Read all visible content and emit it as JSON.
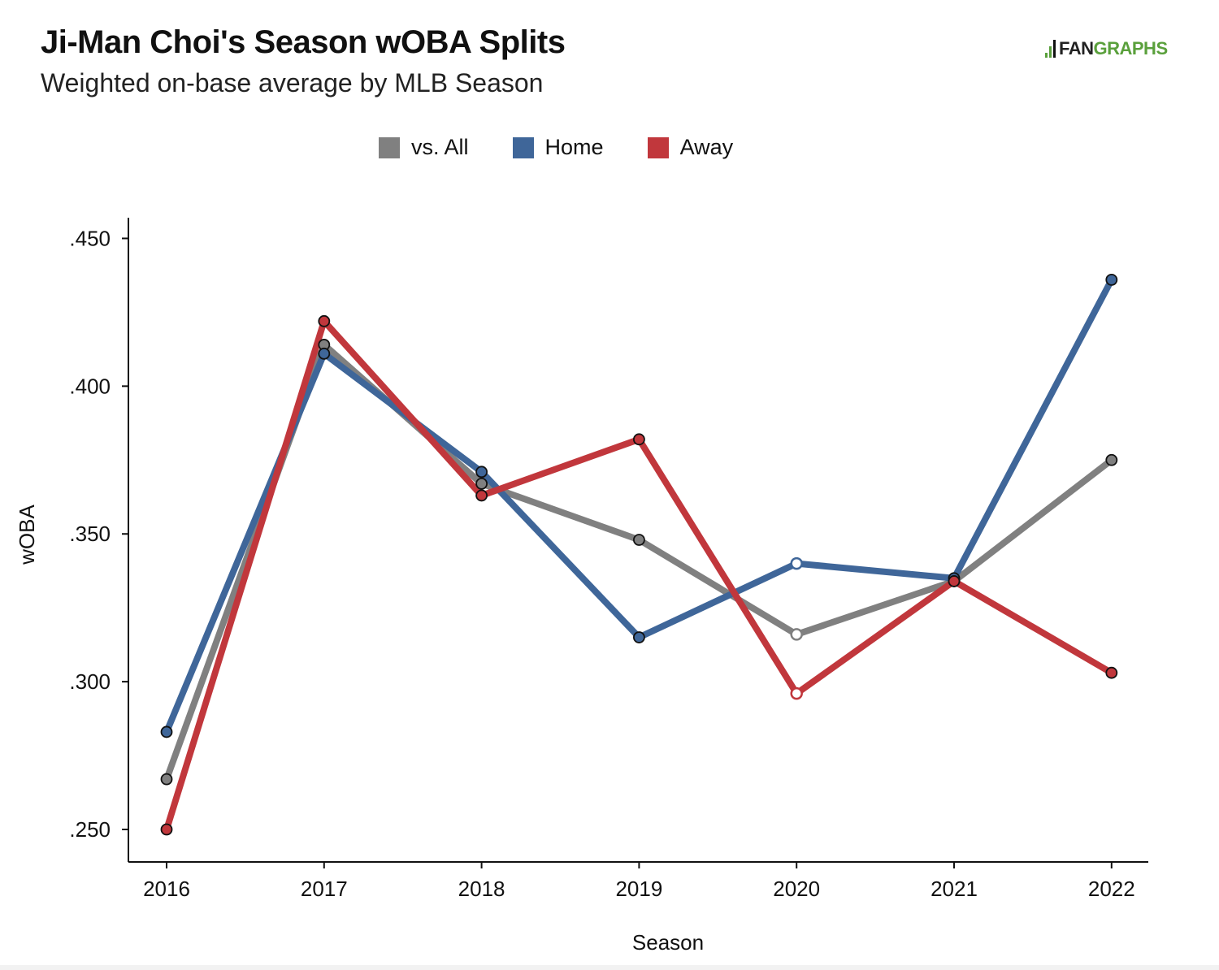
{
  "header": {
    "title": "Ji-Man Choi's Season wOBA Splits",
    "subtitle": "Weighted on-base average by MLB Season"
  },
  "brand": {
    "text_dark": "FAN",
    "text_green": "GRAPHS",
    "color_green": "#5aa03c"
  },
  "chart_data": {
    "type": "line",
    "title": "Ji-Man Choi's Season wOBA Splits",
    "subtitle": "Weighted on-base average by MLB Season",
    "xlabel": "Season",
    "ylabel": "wOBA",
    "x": [
      "2016",
      "2017",
      "2018",
      "2019",
      "2020",
      "2021",
      "2022"
    ],
    "ylim": [
      0.239,
      0.457
    ],
    "yticks": [
      0.25,
      0.3,
      0.35,
      0.4,
      0.45
    ],
    "ytick_labels": [
      ".250",
      ".300",
      ".350",
      ".400",
      ".450"
    ],
    "grid": false,
    "legend_position": "top-center",
    "hollow_marker_seasons": [
      "2020"
    ],
    "series": [
      {
        "name": "vs. All",
        "color": "#808080",
        "values": [
          0.267,
          0.414,
          0.367,
          0.348,
          0.316,
          0.334,
          0.375
        ]
      },
      {
        "name": "Home",
        "color": "#3f6699",
        "values": [
          0.283,
          0.411,
          0.371,
          0.315,
          0.34,
          0.335,
          0.436
        ]
      },
      {
        "name": "Away",
        "color": "#c1373c",
        "values": [
          0.25,
          0.422,
          0.363,
          0.382,
          0.296,
          0.334,
          0.303
        ]
      }
    ]
  }
}
